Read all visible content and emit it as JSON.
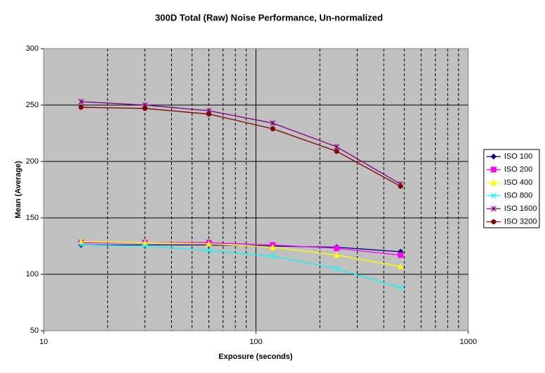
{
  "chart_data": {
    "type": "line",
    "title": "300D Total (Raw) Noise Performance, Un-normalized",
    "x_label": "Exposure (seconds)",
    "y_label": "Mean (Average)",
    "x": [
      15,
      30,
      60,
      120,
      240,
      480
    ],
    "xscale": "log",
    "xlim": [
      10,
      1000
    ],
    "xticks": [
      10,
      100,
      1000
    ],
    "xminorticks": [
      20,
      30,
      40,
      50,
      60,
      70,
      80,
      90,
      200,
      300,
      400,
      500,
      600,
      700,
      800,
      900
    ],
    "ylim": [
      50,
      300
    ],
    "yticks": [
      50,
      100,
      150,
      200,
      250,
      300
    ],
    "grid": true,
    "legend": "right",
    "plot_background": "#c0c0c0",
    "series": [
      {
        "name": "ISO 100",
        "color": "#000080",
        "marker": "diamond",
        "values": [
          126,
          126,
          126,
          125,
          124,
          120
        ]
      },
      {
        "name": "ISO 200",
        "color": "#ff00ff",
        "marker": "square",
        "values": [
          128,
          128,
          128,
          126,
          123,
          117
        ]
      },
      {
        "name": "ISO 400",
        "color": "#ffff00",
        "marker": "triangle",
        "values": [
          129,
          128,
          127,
          124,
          117,
          107
        ]
      },
      {
        "name": "ISO 800",
        "color": "#00ffff",
        "marker": "x",
        "values": [
          126,
          125,
          121,
          116,
          105,
          88
        ]
      },
      {
        "name": "ISO 1600",
        "color": "#800080",
        "marker": "star",
        "values": [
          253,
          250,
          245,
          234,
          213,
          180
        ]
      },
      {
        "name": "ISO 3200",
        "color": "#800000",
        "marker": "circle",
        "values": [
          248,
          247,
          242,
          229,
          209,
          178
        ]
      }
    ]
  }
}
